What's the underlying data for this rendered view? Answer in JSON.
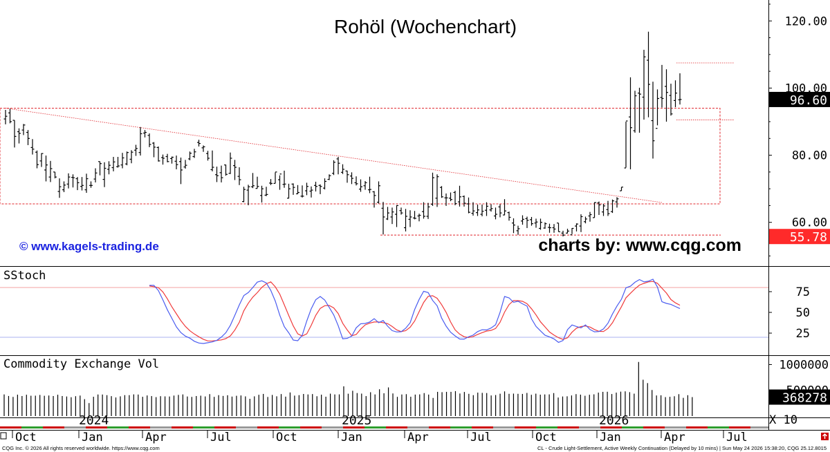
{
  "chart_data": {
    "type": "ohlc",
    "title": "Rohöl (Wochenchart)",
    "watermark_left": "© www.kagels-trading.de",
    "watermark_right": "charts by: www.cqg.com",
    "price_axis": {
      "ylim": [
        48,
        125
      ],
      "ticks": [
        120,
        100,
        80,
        60
      ],
      "tick_labels": [
        "120.00",
        "100.00",
        "80.00",
        "60.00"
      ]
    },
    "last_price_label": "96.60",
    "low_price_label": "55.78",
    "x_axis": {
      "months": [
        "Oct",
        "Jan",
        "Apr",
        "Jul",
        "Oct",
        "Jan",
        "Apr",
        "Jul",
        "Oct",
        "Jan",
        "Apr",
        "Jul"
      ],
      "years": [
        "2024",
        "2025",
        "2026"
      ]
    },
    "weekly_bars": [
      [
        90.8,
        93.5,
        89.2,
        91.6
      ],
      [
        92.6,
        93.9,
        89.5,
        90.0
      ],
      [
        90.4,
        90.4,
        82.3,
        85.6
      ],
      [
        87.0,
        88.0,
        83.5,
        86.5
      ],
      [
        87.5,
        89.3,
        86.0,
        89.0
      ],
      [
        86.8,
        87.5,
        83.0,
        85.0
      ],
      [
        82.3,
        84.8,
        80.2,
        81.8
      ],
      [
        80.9,
        81.4,
        76.1,
        77.2
      ],
      [
        78.3,
        80.6,
        76.5,
        80.5
      ],
      [
        75.6,
        79.9,
        72.2,
        77.1
      ],
      [
        73.5,
        78.3,
        72.0,
        76.0
      ],
      [
        75.0,
        75.0,
        73.1,
        73.5
      ],
      [
        69.2,
        73.1,
        67.3,
        70.6
      ],
      [
        69.7,
        72.2,
        69.0,
        71.1
      ],
      [
        71.4,
        74.6,
        70.1,
        73.5
      ],
      [
        73.4,
        74.3,
        70.4,
        73.3
      ],
      [
        73.0,
        73.5,
        69.6,
        71.8
      ],
      [
        70.7,
        73.5,
        69.5,
        71.0
      ],
      [
        69.7,
        74.5,
        68.8,
        73.0
      ],
      [
        71.0,
        72.2,
        70.3,
        71.0
      ],
      [
        72.9,
        76.1,
        71.9,
        74.7
      ],
      [
        78.1,
        78.1,
        74.0,
        77.5
      ],
      [
        72.8,
        77.9,
        70.5,
        76.1
      ],
      [
        75.8,
        78.2,
        74.3,
        77.0
      ],
      [
        76.3,
        79.5,
        75.2,
        78.0
      ],
      [
        76.6,
        79.5,
        76.3,
        76.8
      ],
      [
        77.1,
        80.7,
        76.1,
        79.2
      ],
      [
        77.4,
        81.1,
        77.0,
        80.8
      ],
      [
        78.8,
        81.5,
        77.6,
        80.9
      ],
      [
        81.5,
        83.1,
        79.8,
        82.0
      ],
      [
        80.8,
        88.4,
        79.9,
        86.4
      ],
      [
        86.6,
        87.5,
        85.3,
        86.8
      ],
      [
        85.9,
        86.5,
        82.4,
        83.2
      ],
      [
        83.6,
        83.9,
        79.4,
        82.4
      ],
      [
        82.3,
        82.6,
        78.1,
        78.3
      ],
      [
        79.3,
        80.2,
        77.2,
        79.1
      ],
      [
        79.6,
        80.4,
        77.9,
        78.1
      ],
      [
        79.0,
        79.6,
        77.5,
        79.4
      ],
      [
        78.2,
        79.9,
        75.8,
        77.2
      ],
      [
        78.1,
        79.3,
        71.4,
        75.6
      ],
      [
        76.5,
        78.6,
        76.0,
        77.0
      ],
      [
        78.9,
        81.1,
        78.5,
        80.6
      ],
      [
        79.6,
        81.9,
        79.2,
        81.0
      ],
      [
        83.8,
        84.6,
        82.6,
        83.5
      ],
      [
        82.2,
        82.9,
        81.0,
        82.5
      ],
      [
        80.5,
        81.3,
        78.4,
        79.1
      ],
      [
        75.7,
        81.4,
        75.2,
        76.4
      ],
      [
        74.2,
        76.6,
        72.0,
        73.9
      ],
      [
        74.8,
        76.9,
        71.9,
        73.3
      ],
      [
        77.1,
        77.2,
        73.9,
        74.3
      ],
      [
        74.6,
        80.8,
        74.4,
        79.1
      ],
      [
        76.9,
        78.6,
        72.6,
        76.4
      ],
      [
        73.7,
        76.4,
        71.1,
        72.7
      ],
      [
        66.2,
        70.6,
        66.0,
        69.8
      ],
      [
        69.6,
        71.2,
        65.1,
        70.6
      ],
      [
        70.6,
        74.7,
        70.2,
        70.9
      ],
      [
        70.1,
        73.6,
        70.1,
        70.7
      ],
      [
        68.0,
        70.9,
        65.9,
        70.0
      ],
      [
        68.1,
        70.6,
        67.8,
        68.3
      ],
      [
        71.7,
        72.9,
        71.1,
        71.6
      ],
      [
        71.6,
        74.9,
        71.6,
        75.0
      ],
      [
        72.7,
        74.0,
        69.7,
        74.4
      ],
      [
        71.3,
        75.4,
        70.3,
        71.4
      ],
      [
        67.2,
        71.5,
        67.1,
        70.0
      ],
      [
        71.4,
        71.6,
        68.2,
        70.4
      ],
      [
        68.5,
        71.1,
        68.4,
        68.9
      ],
      [
        67.8,
        71.0,
        67.4,
        67.8
      ],
      [
        69.4,
        71.8,
        68.1,
        70.7
      ],
      [
        69.3,
        70.7,
        67.4,
        69.6
      ],
      [
        71.0,
        72.1,
        69.2,
        70.7
      ],
      [
        71.0,
        71.3,
        68.4,
        70.7
      ],
      [
        70.2,
        73.1,
        69.8,
        72.2
      ],
      [
        72.8,
        74.3,
        72.6,
        73.9
      ],
      [
        74.6,
        78.5,
        74.1,
        77.9
      ],
      [
        78.9,
        79.5,
        74.3,
        77.6
      ],
      [
        74.9,
        77.3,
        74.4,
        75.8
      ],
      [
        75.3,
        75.4,
        71.8,
        74.2
      ],
      [
        73.8,
        74.9,
        71.4,
        73.1
      ],
      [
        71.8,
        73.7,
        71.0,
        71.5
      ],
      [
        69.9,
        72.8,
        69.1,
        70.6
      ],
      [
        70.9,
        72.3,
        69.7,
        71.8
      ],
      [
        69.7,
        73.6,
        68.7,
        69.8
      ],
      [
        69.1,
        69.3,
        64.4,
        68.0
      ],
      [
        66.0,
        72.2,
        65.6,
        70.9
      ],
      [
        64.2,
        66.1,
        56.4,
        61.6
      ],
      [
        61.0,
        64.6,
        60.7,
        62.8
      ],
      [
        61.6,
        64.4,
        59.5,
        63.1
      ],
      [
        62.4,
        65.1,
        58.6,
        65.0
      ],
      [
        63.5,
        64.4,
        62.3,
        62.8
      ],
      [
        58.4,
        64.0,
        57.3,
        61.8
      ],
      [
        60.9,
        63.6,
        58.6,
        61.6
      ],
      [
        61.3,
        63.4,
        60.9,
        61.2
      ],
      [
        61.9,
        62.6,
        60.3,
        62.1
      ],
      [
        63.2,
        66.0,
        61.1,
        61.8
      ],
      [
        61.8,
        65.8,
        61.0,
        64.6
      ],
      [
        65.4,
        74.8,
        64.9,
        73.3
      ],
      [
        67.2,
        74.3,
        64.6,
        73.6
      ],
      [
        70.4,
        70.8,
        67.3,
        67.6
      ],
      [
        67.3,
        68.6,
        64.9,
        67.3
      ],
      [
        67.2,
        68.9,
        66.3,
        66.8
      ],
      [
        68.9,
        69.4,
        65.1,
        65.6
      ],
      [
        66.1,
        70.9,
        64.7,
        67.6
      ],
      [
        67.7,
        68.0,
        64.7,
        65.7
      ],
      [
        65.5,
        67.4,
        62.7,
        63.0
      ],
      [
        62.7,
        66.0,
        62.0,
        63.4
      ],
      [
        62.9,
        65.3,
        61.9,
        63.7
      ],
      [
        62.4,
        65.3,
        61.8,
        63.3
      ],
      [
        63.6,
        66.0,
        61.9,
        64.8
      ],
      [
        63.7,
        65.4,
        63.2,
        64.1
      ],
      [
        61.9,
        64.4,
        60.9,
        62.4
      ],
      [
        64.6,
        65.4,
        61.5,
        62.8
      ],
      [
        62.2,
        66.9,
        62.1,
        63.4
      ],
      [
        62.9,
        63.2,
        60.5,
        61.5
      ],
      [
        59.8,
        61.2,
        56.8,
        59.2
      ],
      [
        57.5,
        59.0,
        56.3,
        58.1
      ],
      [
        60.4,
        62.1,
        59.3,
        60.9
      ],
      [
        61.1,
        61.7,
        58.3,
        60.6
      ],
      [
        60.8,
        61.6,
        59.0,
        59.6
      ],
      [
        59.8,
        61.1,
        58.4,
        60.1
      ],
      [
        58.2,
        61.1,
        57.8,
        60.0
      ],
      [
        58.3,
        60.0,
        58.1,
        59.6
      ],
      [
        58.5,
        59.6,
        56.9,
        58.4
      ],
      [
        58.4,
        59.5,
        56.9,
        58.0
      ],
      [
        59.8,
        59.8,
        57.2,
        57.2
      ],
      [
        56.8,
        57.5,
        55.8,
        56.2
      ],
      [
        56.8,
        58.1,
        56.7,
        57.4
      ],
      [
        56.3,
        58.3,
        56.5,
        58.2
      ],
      [
        58.9,
        59.7,
        57.3,
        59.5
      ],
      [
        58.9,
        62.4,
        57.1,
        61.7
      ],
      [
        60.2,
        61.7,
        59.7,
        61.0
      ],
      [
        61.9,
        63.1,
        60.2,
        62.3
      ],
      [
        61.4,
        66.0,
        61.4,
        65.9
      ],
      [
        65.8,
        66.2,
        62.2,
        65.2
      ],
      [
        63.1,
        65.5,
        61.9,
        64.9
      ],
      [
        63.8,
        66.4,
        61.9,
        62.6
      ],
      [
        63.2,
        66.8,
        62.8,
        66.4
      ],
      [
        66.1,
        67.5,
        64.4,
        67.0
      ],
      [
        69.4,
        70.5,
        69.4,
        70.5
      ],
      [
        76.2,
        90.0,
        76.3,
        90.2
      ],
      [
        91.4,
        103.2,
        75.8,
        88.2
      ],
      [
        87.3,
        99.2,
        86.7,
        97.7
      ],
      [
        98.5,
        100.1,
        86.7,
        98.2
      ],
      [
        97.3,
        111.4,
        90.6,
        109.3
      ],
      [
        108.3,
        116.8,
        91.3,
        101.1
      ],
      [
        90.3,
        101.9,
        79.0,
        84.3
      ],
      [
        88.0,
        99.6,
        88.9,
        96.9
      ],
      [
        97.2,
        106.9,
        94.2,
        96.9
      ],
      [
        100.5,
        105.6,
        90.0,
        98.7
      ],
      [
        97.8,
        101.3,
        91.8,
        92.3
      ],
      [
        96.3,
        102.3,
        94.3,
        98.5
      ],
      [
        96.5,
        104.4,
        95.1,
        96.6
      ]
    ],
    "channel_box": {
      "top": 94,
      "bottom": 65.5
    },
    "trendline": {
      "start": 94,
      "end": 65.9
    },
    "support_low": 56.2,
    "resistance_top": 107.5,
    "resistance_mid": 90.5,
    "stoch": {
      "label": "SStoch",
      "ylim": [
        0,
        100
      ],
      "ticks": [
        75,
        50,
        25
      ],
      "upper_band": 80,
      "lower_band": 20,
      "k": [
        82.6,
        82.7,
        76.3,
        65.1,
        53.1,
        42.8,
        32.6,
        25.7,
        21.4,
        18.9,
        15.2,
        13.1,
        12.5,
        13.4,
        14.4,
        16.3,
        20.2,
        25.5,
        34.3,
        46.4,
        59.1,
        70.3,
        73.9,
        80.0,
        86.5,
        88.1,
        85.6,
        76.5,
        63.7,
        46.6,
        32.8,
        25.3,
        16.6,
        15.8,
        22.6,
        39.6,
        54.4,
        65.3,
        69.2,
        64.9,
        56.0,
        46.9,
        33.9,
        18.2,
        18.7,
        21.4,
        31.4,
        36.3,
        36.7,
        38.4,
        42.4,
        37.6,
        40.2,
        33.3,
        28.0,
        26.4,
        26.7,
        30.8,
        37.5,
        53.4,
        65.7,
        75.4,
        73.9,
        64.4,
        58.0,
        43.2,
        33.4,
        26.1,
        21.7,
        17.9,
        17.8,
        20.6,
        22.6,
        26.8,
        29.1,
        28.8,
        31.2,
        35.1,
        50.2,
        69.2,
        67.5,
        62.2,
        63.4,
        60.3,
        57.6,
        42.2,
        33.1,
        27.7,
        22.4,
        20.5,
        18.0,
        13.8,
        16.1,
        29.2,
        34.8,
        33.0,
        31.3,
        34.9,
        29.3,
        26.6,
        26.9,
        30.1,
        37.0,
        48.1,
        57.7,
        65.9,
        79.7,
        81.6,
        86.3,
        89.6,
        86.8,
        87.6,
        90.0,
        80.6,
        62.8,
        60.8,
        59.7,
        57.1,
        54.7
      ],
      "d": [
        81.8,
        81.0,
        79.8,
        74.7,
        66.3,
        56.7,
        48.3,
        40.0,
        33.2,
        27.8,
        23.9,
        20.6,
        17.6,
        15.6,
        15.7,
        16.1,
        16.8,
        18.4,
        21.7,
        28.7,
        38.1,
        51.9,
        61.1,
        68.4,
        73.8,
        80.2,
        84.4,
        86.8,
        80.8,
        72.0,
        59.2,
        46.2,
        33.7,
        24.1,
        21.5,
        24.1,
        34.5,
        46.4,
        54.8,
        58.1,
        58.3,
        55.4,
        48.6,
        36.8,
        28.8,
        21.8,
        23.3,
        29.8,
        34.9,
        37.0,
        38.4,
        38.5,
        37.6,
        36.4,
        33.0,
        28.9,
        26.8,
        27.9,
        32.1,
        39.6,
        50.9,
        62.0,
        69.3,
        70.1,
        67.0,
        59.3,
        50.1,
        38.4,
        28.9,
        23.8,
        20.7,
        19.7,
        20.9,
        23.4,
        25.6,
        27.5,
        28.3,
        30.6,
        38.2,
        50.3,
        59.4,
        64.3,
        64.2,
        63.3,
        60.4,
        54.3,
        46.9,
        38.6,
        32.5,
        26.3,
        22.6,
        19.5,
        17.4,
        19.4,
        26.1,
        31.0,
        32.9,
        33.6,
        32.3,
        29.3,
        27.2,
        26.9,
        30.7,
        37.5,
        47.3,
        56.9,
        67.6,
        73.1,
        78.4,
        82.9,
        85.0,
        86.8,
        87.3,
        85.1,
        79.2,
        73.3,
        65.5,
        61.5,
        58.7
      ]
    },
    "volume": {
      "label": "Commodity Exchange Vol",
      "ylim": [
        0,
        1100000
      ],
      "ticks": [
        1000000,
        500000
      ],
      "tick_labels": [
        "1000000",
        "500000"
      ],
      "last_label": "368278",
      "multiplier_label": "X 10",
      "values": [
        420000,
        390000,
        372000,
        415000,
        389000,
        414000,
        395000,
        396000,
        410000,
        394000,
        399000,
        389000,
        414000,
        389000,
        380000,
        366000,
        386000,
        398000,
        328000,
        252000,
        375000,
        419000,
        418000,
        406000,
        387000,
        361000,
        383000,
        406000,
        406000,
        421000,
        418000,
        374000,
        400000,
        388000,
        368000,
        386000,
        382000,
        380000,
        398000,
        411000,
        420000,
        380000,
        372000,
        389000,
        396000,
        381000,
        426000,
        373000,
        406000,
        391000,
        404000,
        378000,
        394000,
        400000,
        382000,
        335000,
        383000,
        413000,
        430000,
        371000,
        410000,
        384000,
        427000,
        377000,
        458000,
        397000,
        406000,
        429000,
        420000,
        427000,
        385000,
        415000,
        376000,
        435000,
        420000,
        421000,
        577000,
        434000,
        491000,
        447000,
        436000,
        388000,
        463000,
        420000,
        520000,
        442000,
        556000,
        439000,
        373000,
        419000,
        425000,
        375000,
        417000,
        421000,
        446000,
        417000,
        352000,
        470000,
        464000,
        470000,
        470000,
        484000,
        438000,
        468000,
        432000,
        406000,
        455000,
        450000,
        447000,
        400000,
        408000,
        434000,
        479000,
        432000,
        436000,
        432000,
        430000,
        449000,
        413000,
        435000,
        416000,
        420000,
        421000,
        446000,
        360000,
        380000,
        384000,
        400000,
        426000,
        416000,
        394000,
        414000,
        422000,
        455000,
        470000,
        472000,
        428000,
        455000,
        474000,
        480000,
        464000,
        435000,
        1050000,
        705000,
        640000,
        506000,
        400000,
        403000,
        368000,
        374000,
        385000,
        425000,
        354000,
        405000,
        368000
      ]
    }
  },
  "footer": {
    "left": "CQG Inc. © 2026 All rights reserved worldwide. https://www.cqg.com",
    "right": "CL - Crude Light-Settlement, Active Weekly Continuation (Delayed by 10 mins) | Sun May 24 2026 15:38:20, CQG 25.12.8015"
  },
  "colors": {
    "background": "#ffffff",
    "bar": "#000000",
    "stoch_k": "#4a5cf0",
    "stoch_d": "#f03a3a",
    "channel": "#e0232a",
    "last_price_bg": "#000000",
    "low_price_bg": "#ff2a2a",
    "link_blue": "#1a22e0",
    "month_strip": [
      "#cc0000",
      "#2e9e2e",
      "#999999",
      "#000000"
    ]
  }
}
